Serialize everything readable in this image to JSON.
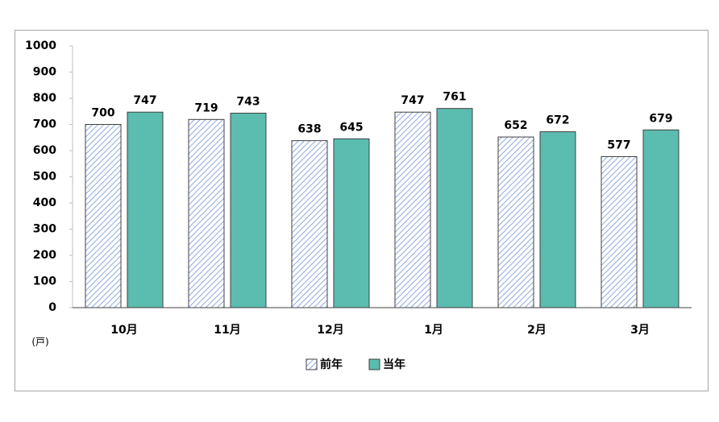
{
  "chart_data": {
    "type": "bar",
    "categories": [
      "10月",
      "11月",
      "12月",
      "1月",
      "2月",
      "3月"
    ],
    "series": [
      {
        "name": "前年",
        "color": "#8ea9db",
        "pattern": "hatch",
        "values": [
          700,
          719,
          638,
          747,
          652,
          577
        ]
      },
      {
        "name": "当年",
        "color": "#5bbcb0",
        "values": [
          747,
          743,
          645,
          761,
          672,
          679
        ]
      }
    ],
    "ylim": [
      0,
      1000
    ],
    "yticks": [
      0,
      100,
      200,
      300,
      400,
      500,
      600,
      700,
      800,
      900,
      1000
    ],
    "unit_label": "(戸)",
    "legend": "bottom",
    "grid": false
  }
}
